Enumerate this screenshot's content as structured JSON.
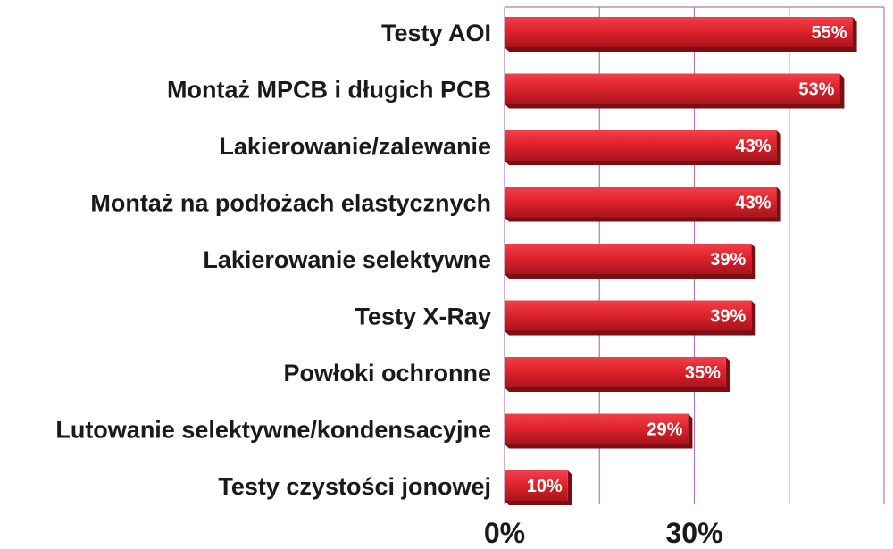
{
  "chart_data": {
    "type": "bar",
    "orientation": "horizontal",
    "title": "",
    "xlabel": "",
    "ylabel": "",
    "categories": [
      "Testy AOI",
      "Montaż MPCB i długich PCB",
      "Lakierowanie/zalewanie",
      "Montaż na podłożach elastycznych",
      "Lakierowanie selektywne",
      "Testy X-Ray",
      "Powłoki ochronne",
      "Lutowanie selektywne/kondensacyjne",
      "Testy czystości jonowej"
    ],
    "values": [
      55,
      53,
      43,
      43,
      39,
      39,
      35,
      29,
      10
    ],
    "value_labels": [
      "55%",
      "53%",
      "43%",
      "43%",
      "39%",
      "39%",
      "35%",
      "29%",
      "10%"
    ],
    "xlim": [
      0,
      60
    ],
    "x_ticks": [
      0,
      30
    ],
    "x_tick_labels": [
      "0%",
      "30%"
    ],
    "gridlines_at": [
      0,
      15,
      30,
      45,
      60
    ],
    "grid": true,
    "legend": "none",
    "colors": {
      "bar_light": "#f0414b",
      "bar_main": "#e0232d",
      "bar_dark": "#a8141c",
      "bar_side": "#7a0e14",
      "grid": "#b07ab0",
      "label_text": "#1a1a1a"
    }
  }
}
